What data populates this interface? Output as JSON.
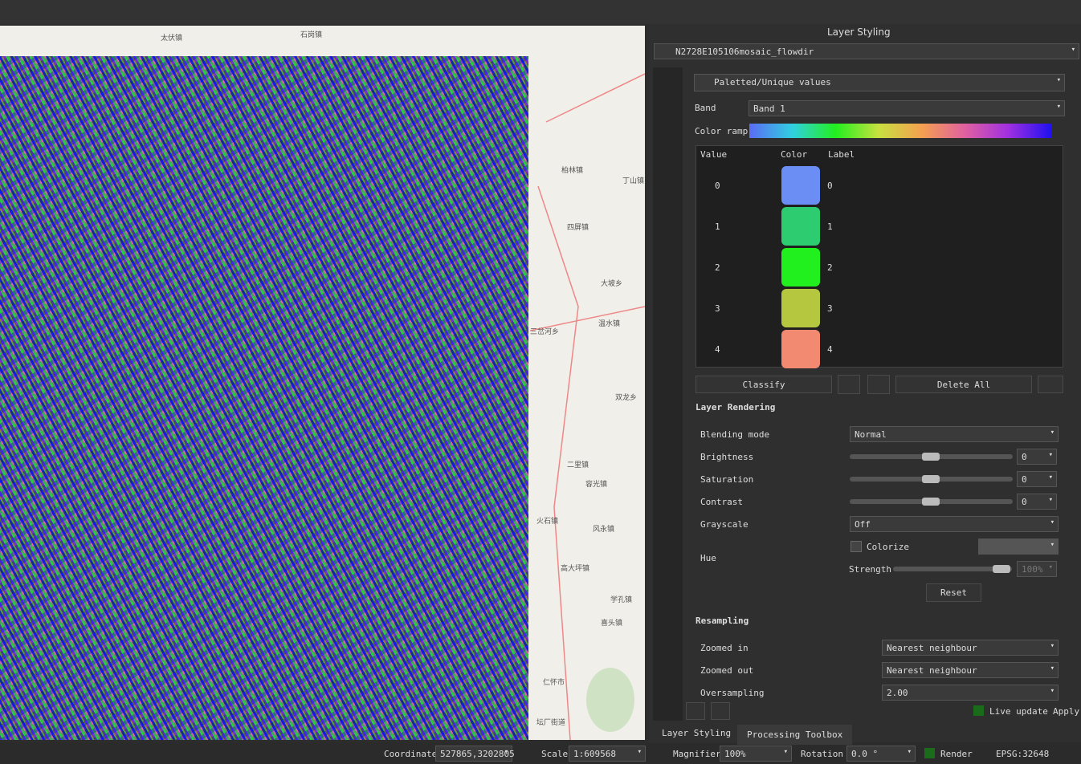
{
  "panel": {
    "title": "Layer Styling",
    "layer": "N2728E105106mosaic_flowdir",
    "renderer": "Paletted/Unique values",
    "band_label": "Band",
    "band": "Band 1",
    "color_ramp_label": "Color ramp",
    "table": {
      "headers": [
        "Value",
        "Color",
        "Label"
      ],
      "rows": [
        {
          "value": 0,
          "color": "#6b8ef5",
          "label": "0"
        },
        {
          "value": 1,
          "color": "#2ecc71",
          "label": "1"
        },
        {
          "value": 2,
          "color": "#22f01e",
          "label": "2"
        },
        {
          "value": 3,
          "color": "#b5c63f",
          "label": "3"
        },
        {
          "value": 4,
          "color": "#f28a72",
          "label": "4"
        }
      ]
    },
    "buttons": {
      "classify": "Classify",
      "delete_all": "Delete All",
      "reset": "Reset",
      "apply": "Apply"
    },
    "layer_rendering": {
      "title": "Layer Rendering",
      "blending_label": "Blending mode",
      "blending": "Normal",
      "brightness_label": "Brightness",
      "brightness": "0",
      "saturation_label": "Saturation",
      "saturation": "0",
      "contrast_label": "Contrast",
      "contrast": "0",
      "grayscale_label": "Grayscale",
      "grayscale": "Off",
      "hue_label": "Hue",
      "colorize": "Colorize",
      "strength_label": "Strength",
      "strength": "100%"
    },
    "resampling": {
      "title": "Resampling",
      "zoomed_in_label": "Zoomed in",
      "zoomed_in": "Nearest neighbour",
      "zoomed_out_label": "Zoomed out",
      "zoomed_out": "Nearest neighbour",
      "oversampling_label": "Oversampling",
      "oversampling": "2.00"
    },
    "live_update": "Live update",
    "tabs": [
      "Layer Styling",
      "Processing Toolbox"
    ]
  },
  "status": {
    "coordinate_label": "Coordinate",
    "coordinate": "527865,3202805",
    "scale_label": "Scale",
    "scale": "1:609568",
    "magnifier_label": "Magnifier",
    "magnifier": "100%",
    "rotation_label": "Rotation",
    "rotation": "0.0 °",
    "render": "Render",
    "crs": "EPSG:32648"
  },
  "map": {
    "places": [
      "柏林镇",
      "四屏镇",
      "丁山镇",
      "大坡乡",
      "温水镇",
      "三岔河乡",
      "双龙乡",
      "二里镇",
      "容光镇",
      "火石镇",
      "风永镇",
      "高大坪镇",
      "学孔镇",
      "喜头镇",
      "仁怀市",
      "坛厂街道",
      "石岗镇",
      "太伏镇"
    ]
  }
}
